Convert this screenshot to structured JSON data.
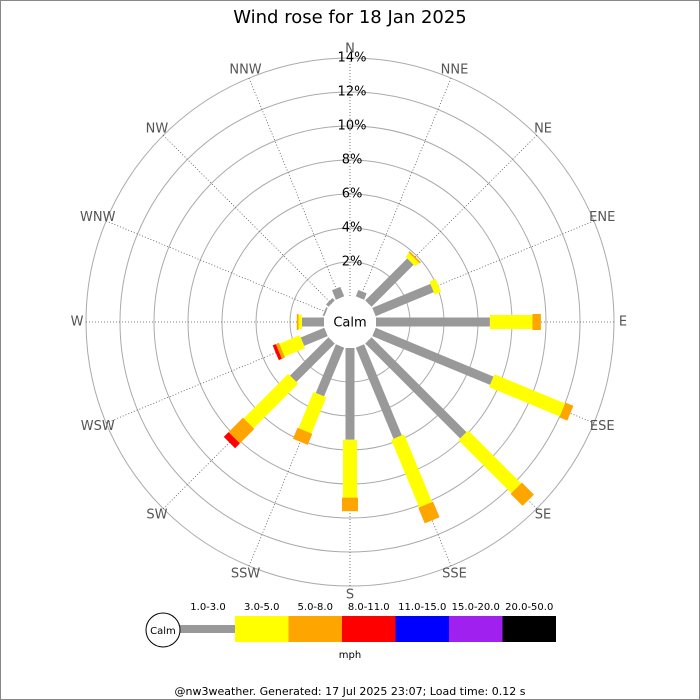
{
  "chart_data": {
    "type": "windrose",
    "title": "Wind rose for 18 Jan 2025",
    "categories": [
      "N",
      "NNE",
      "NE",
      "ENE",
      "E",
      "ESE",
      "SE",
      "SSE",
      "S",
      "SSW",
      "SW",
      "WSW",
      "W",
      "WNW",
      "NW",
      "NNW"
    ],
    "calm_label": "Calm",
    "rlim": [
      0,
      14
    ],
    "rticks": [
      {
        "value": 2,
        "label": "2%"
      },
      {
        "value": 4,
        "label": "4%"
      },
      {
        "value": 6,
        "label": "6%"
      },
      {
        "value": 8,
        "label": "8%"
      },
      {
        "value": 10,
        "label": "10%"
      },
      {
        "value": 12,
        "label": "12%"
      },
      {
        "value": 14,
        "label": "14%"
      }
    ],
    "grid": true,
    "unit_label": "mph",
    "series": [
      {
        "name": "1.0-3.0",
        "color": "#999999",
        "values": [
          0,
          0.4,
          3.5,
          3.7,
          6.7,
          7.5,
          7.9,
          5.8,
          5.4,
          3.1,
          3.2,
          1.5,
          1.3,
          0.1,
          0.2,
          0.6
        ]
      },
      {
        "name": "3.0-5.0",
        "color": "#ffff00",
        "values": [
          0,
          0,
          0.3,
          0.4,
          2.5,
          4.5,
          4.4,
          4.3,
          3.4,
          2.3,
          3.7,
          1.3,
          0.2,
          0,
          0,
          0
        ]
      },
      {
        "name": "5.0-8.0",
        "color": "#ffa500",
        "values": [
          0,
          0,
          0.1,
          0,
          0.5,
          0.5,
          1.0,
          1.0,
          0.8,
          0.7,
          1.2,
          0.2,
          0.1,
          0,
          0,
          0
        ]
      },
      {
        "name": "8.0-11.0",
        "color": "#ff0000",
        "values": [
          0,
          0,
          0,
          0,
          0,
          0,
          0,
          0,
          0,
          0,
          0.4,
          0.2,
          0,
          0,
          0,
          0
        ]
      },
      {
        "name": "11.0-15.0",
        "color": "#0000ff",
        "values": [
          0,
          0,
          0,
          0,
          0,
          0,
          0,
          0,
          0,
          0,
          0,
          0,
          0,
          0,
          0,
          0
        ]
      },
      {
        "name": "15.0-20.0",
        "color": "#a020f0",
        "values": [
          0,
          0,
          0,
          0,
          0,
          0,
          0,
          0,
          0,
          0,
          0,
          0,
          0,
          0,
          0,
          0
        ]
      },
      {
        "name": "20.0-50.0",
        "color": "#000000",
        "values": [
          0,
          0,
          0,
          0,
          0,
          0,
          0,
          0,
          0,
          0,
          0,
          0,
          0,
          0,
          0,
          0
        ]
      }
    ],
    "footer": "@nw3weather.  Generated: 17 Jul 2025 23:07; Load time: 0.12 s"
  }
}
